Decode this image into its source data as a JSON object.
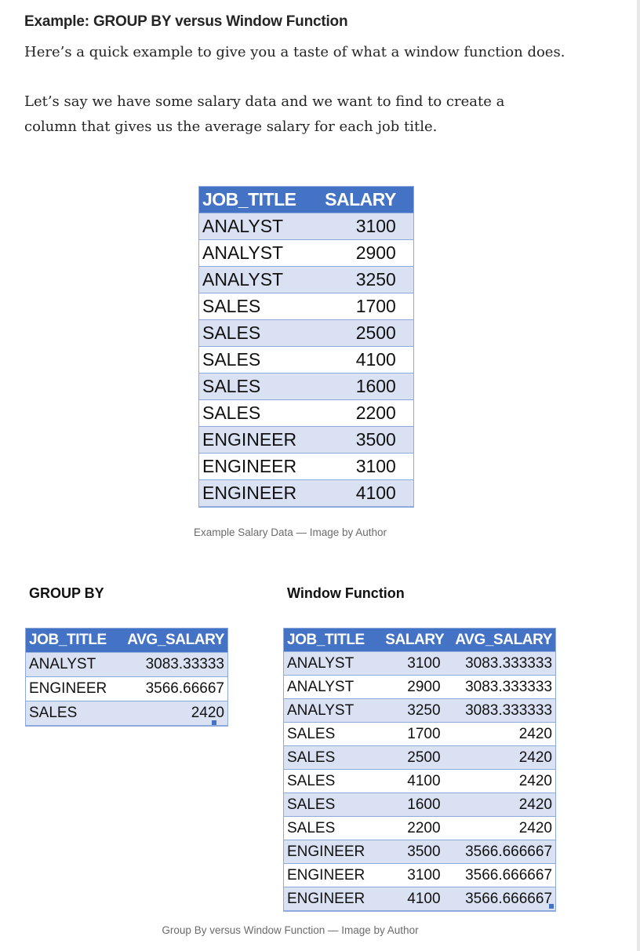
{
  "heading": "Example: GROUP BY versus Window Function",
  "paragraphs": [
    "Here’s a quick example to give you a taste of what a window function does.",
    "Let’s say we have some salary data and we want to find to create a column that gives us the average salary for each job title."
  ],
  "main_table": {
    "headers": [
      "JOB_TITLE",
      "SALARY"
    ],
    "rows": [
      [
        "ANALYST",
        "3100"
      ],
      [
        "ANALYST",
        "2900"
      ],
      [
        "ANALYST",
        "3250"
      ],
      [
        "SALES",
        "1700"
      ],
      [
        "SALES",
        "2500"
      ],
      [
        "SALES",
        "4100"
      ],
      [
        "SALES",
        "1600"
      ],
      [
        "SALES",
        "2200"
      ],
      [
        "ENGINEER",
        "3500"
      ],
      [
        "ENGINEER",
        "3100"
      ],
      [
        "ENGINEER",
        "4100"
      ]
    ]
  },
  "caption_1": "Example Salary Data — Image by Author",
  "group_by": {
    "title": "GROUP BY",
    "headers": [
      "JOB_TITLE",
      "AVG_SALARY"
    ],
    "rows": [
      [
        "ANALYST",
        "3083.33333"
      ],
      [
        "ENGINEER",
        "3566.66667"
      ],
      [
        "SALES",
        "2420"
      ]
    ]
  },
  "window_function": {
    "title": "Window Function",
    "headers": [
      "JOB_TITLE",
      "SALARY",
      "AVG_SALARY"
    ],
    "rows": [
      [
        "ANALYST",
        "3100",
        "3083.333333"
      ],
      [
        "ANALYST",
        "2900",
        "3083.333333"
      ],
      [
        "ANALYST",
        "3250",
        "3083.333333"
      ],
      [
        "SALES",
        "1700",
        "2420"
      ],
      [
        "SALES",
        "2500",
        "2420"
      ],
      [
        "SALES",
        "4100",
        "2420"
      ],
      [
        "SALES",
        "1600",
        "2420"
      ],
      [
        "SALES",
        "2200",
        "2420"
      ],
      [
        "ENGINEER",
        "3500",
        "3566.666667"
      ],
      [
        "ENGINEER",
        "3100",
        "3566.666667"
      ],
      [
        "ENGINEER",
        "4100",
        "3566.666667"
      ]
    ]
  },
  "caption_2": "Group By versus Window Function — Image by Author",
  "colors": {
    "header_fill": "#4472c4",
    "band_fill": "#d9e1f2",
    "border": "#8eaadb"
  }
}
